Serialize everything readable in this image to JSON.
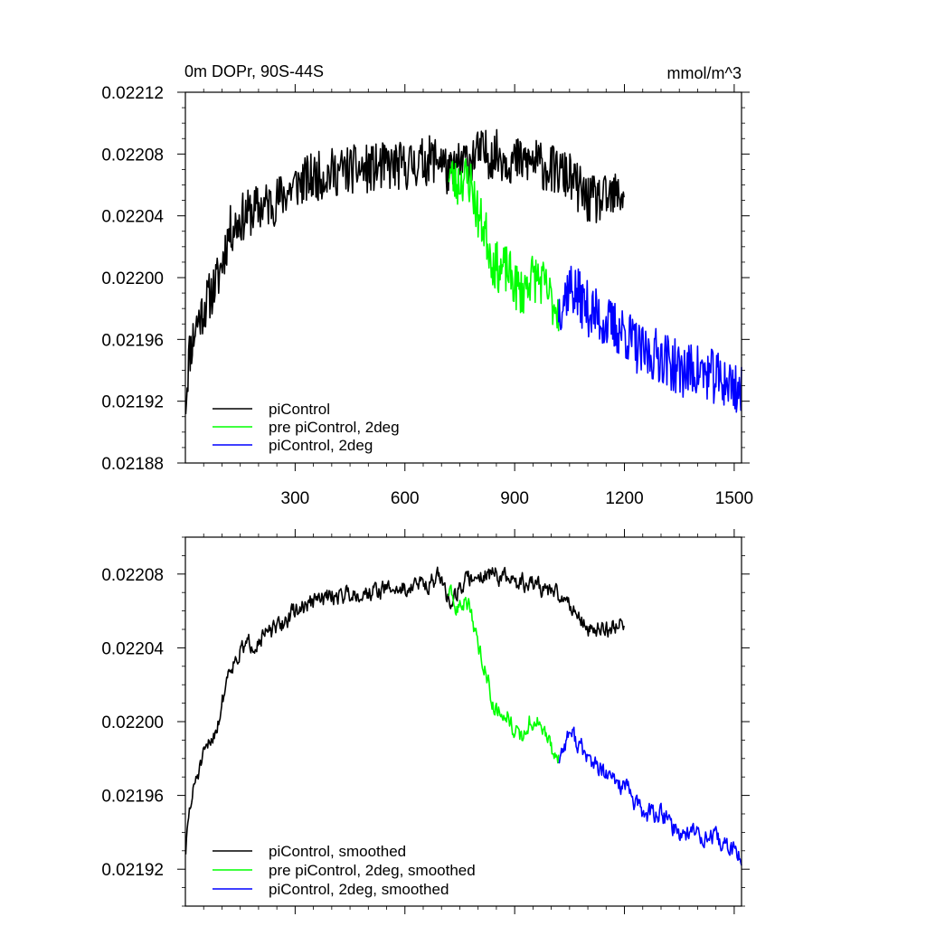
{
  "chart_data": [
    {
      "type": "line",
      "title_left": "0m DOPr, 90S-44S",
      "title_right": "mmol/m^3",
      "xlabel": "",
      "ylabel": "",
      "xlim": [
        0,
        1520
      ],
      "ylim": [
        0.02188,
        0.02212
      ],
      "x_ticks": [
        300,
        600,
        900,
        1200,
        1500
      ],
      "y_ticks": [
        0.02188,
        0.02192,
        0.02196,
        0.022,
        0.02204,
        0.02208,
        0.02212
      ],
      "y_tick_labels": [
        "0.02188",
        "0.02192",
        "0.02196",
        "0.02200",
        "0.02204",
        "0.02208",
        "0.02212"
      ],
      "legend": {
        "position": "bottom-left"
      },
      "series": [
        {
          "name": "piControl",
          "color": "#000000",
          "noise": 1.6e-05,
          "seed": 11,
          "x": [
            1,
            10,
            30,
            60,
            90,
            120,
            160,
            200,
            250,
            300,
            350,
            400,
            450,
            500,
            550,
            600,
            650,
            700,
            720,
            740,
            760,
            800,
            850,
            900,
            950,
            1000,
            1050,
            1100,
            1150,
            1200
          ],
          "y": [
            0.02192,
            0.02195,
            0.02197,
            0.021985,
            0.022,
            0.02203,
            0.02204,
            0.022045,
            0.02205,
            0.02206,
            0.022065,
            0.022068,
            0.02207,
            0.02207,
            0.022072,
            0.022072,
            0.022075,
            0.022078,
            0.022065,
            0.02207,
            0.022075,
            0.02208,
            0.02208,
            0.022075,
            0.022075,
            0.02207,
            0.022065,
            0.02205,
            0.02205,
            0.022055
          ]
        },
        {
          "name": "pre piControl, 2deg",
          "color": "#00ff00",
          "noise": 1.6e-05,
          "seed": 23,
          "x": [
            720,
            740,
            760,
            780,
            800,
            820,
            840,
            860,
            880,
            900,
            920,
            940,
            960,
            980,
            1000,
            1020
          ],
          "y": [
            0.02207,
            0.02206,
            0.022065,
            0.022062,
            0.02204,
            0.02203,
            0.02201,
            0.022005,
            0.022005,
            0.021995,
            0.02199,
            0.022,
            0.022,
            0.021995,
            0.021985,
            0.02198
          ]
        },
        {
          "name": "piControl, 2deg",
          "color": "#0000ff",
          "noise": 1.8e-05,
          "seed": 37,
          "x": [
            1020,
            1050,
            1100,
            1150,
            1200,
            1250,
            1300,
            1350,
            1400,
            1450,
            1500,
            1520
          ],
          "y": [
            0.02198,
            0.021995,
            0.02198,
            0.02197,
            0.021965,
            0.02195,
            0.02195,
            0.02194,
            0.02194,
            0.021935,
            0.02193,
            0.021925
          ]
        }
      ]
    },
    {
      "type": "line",
      "xlim": [
        0,
        1520
      ],
      "ylim": [
        0.0219,
        0.0221
      ],
      "x_ticks": [
        300,
        600,
        900,
        1200,
        1500
      ],
      "x_tick_labels": [],
      "y_ticks": [
        0.02192,
        0.02196,
        0.022,
        0.02204,
        0.02208
      ],
      "y_tick_labels": [
        "0.02192",
        "0.02196",
        "0.02200",
        "0.02204",
        "0.02208"
      ],
      "legend": {
        "position": "bottom-left"
      },
      "series": [
        {
          "name": "piControl, smoothed",
          "color": "#000000",
          "noise": 9e-06,
          "seed": 51,
          "x": [
            1,
            10,
            30,
            60,
            90,
            120,
            160,
            200,
            250,
            300,
            350,
            400,
            450,
            500,
            550,
            600,
            650,
            700,
            720,
            740,
            760,
            800,
            850,
            900,
            950,
            1000,
            1050,
            1100,
            1150,
            1200
          ],
          "y": [
            0.02193,
            0.02195,
            0.02197,
            0.021985,
            0.022,
            0.02203,
            0.02204,
            0.022045,
            0.02205,
            0.02206,
            0.022065,
            0.022068,
            0.02207,
            0.02207,
            0.022072,
            0.022072,
            0.022075,
            0.022078,
            0.022065,
            0.02207,
            0.022075,
            0.02208,
            0.02208,
            0.022075,
            0.022075,
            0.02207,
            0.022065,
            0.02205,
            0.02205,
            0.022055
          ]
        },
        {
          "name": "pre piControl, 2deg, smoothed",
          "color": "#00ff00",
          "noise": 9e-06,
          "seed": 63,
          "x": [
            720,
            740,
            760,
            780,
            800,
            820,
            840,
            860,
            880,
            900,
            920,
            940,
            960,
            980,
            1000,
            1020
          ],
          "y": [
            0.02207,
            0.02206,
            0.022065,
            0.022062,
            0.02204,
            0.02203,
            0.02201,
            0.022005,
            0.022005,
            0.021995,
            0.02199,
            0.022,
            0.022,
            0.021995,
            0.021985,
            0.02198
          ]
        },
        {
          "name": "piControl, 2deg, smoothed",
          "color": "#0000ff",
          "noise": 1e-05,
          "seed": 77,
          "x": [
            1020,
            1050,
            1100,
            1150,
            1200,
            1250,
            1300,
            1350,
            1400,
            1450,
            1500,
            1520
          ],
          "y": [
            0.02198,
            0.021995,
            0.02198,
            0.02197,
            0.021965,
            0.02195,
            0.02195,
            0.02194,
            0.02194,
            0.021935,
            0.02193,
            0.021925
          ]
        }
      ]
    }
  ]
}
